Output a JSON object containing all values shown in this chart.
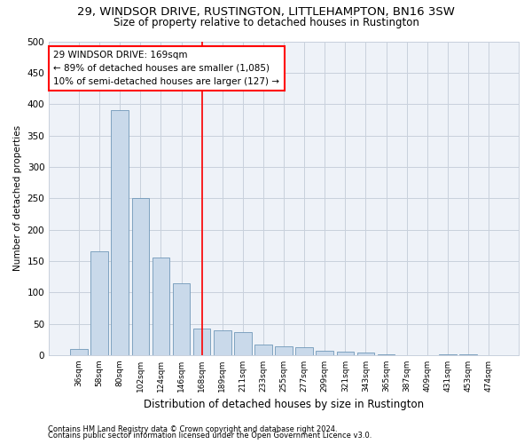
{
  "title1": "29, WINDSOR DRIVE, RUSTINGTON, LITTLEHAMPTON, BN16 3SW",
  "title2": "Size of property relative to detached houses in Rustington",
  "xlabel": "Distribution of detached houses by size in Rustington",
  "ylabel": "Number of detached properties",
  "categories": [
    "36sqm",
    "58sqm",
    "80sqm",
    "102sqm",
    "124sqm",
    "146sqm",
    "168sqm",
    "189sqm",
    "211sqm",
    "233sqm",
    "255sqm",
    "277sqm",
    "299sqm",
    "321sqm",
    "343sqm",
    "365sqm",
    "387sqm",
    "409sqm",
    "431sqm",
    "453sqm",
    "474sqm"
  ],
  "values": [
    10,
    165,
    390,
    250,
    155,
    115,
    42,
    40,
    37,
    17,
    14,
    12,
    7,
    6,
    4,
    2,
    0,
    0,
    2,
    2,
    0
  ],
  "bar_color": "#c9d9ea",
  "bar_edge_color": "#7098b8",
  "annotation_title": "29 WINDSOR DRIVE: 169sqm",
  "annotation_line1": "← 89% of detached houses are smaller (1,085)",
  "annotation_line2": "10% of semi-detached houses are larger (127) →",
  "ylim": [
    0,
    500
  ],
  "yticks": [
    0,
    50,
    100,
    150,
    200,
    250,
    300,
    350,
    400,
    450,
    500
  ],
  "footer1": "Contains HM Land Registry data © Crown copyright and database right 2024.",
  "footer2": "Contains public sector information licensed under the Open Government Licence v3.0.",
  "bg_color": "#ffffff",
  "plot_bg_color": "#eef2f8",
  "grid_color": "#c8d0dc",
  "vline_idx": 6
}
